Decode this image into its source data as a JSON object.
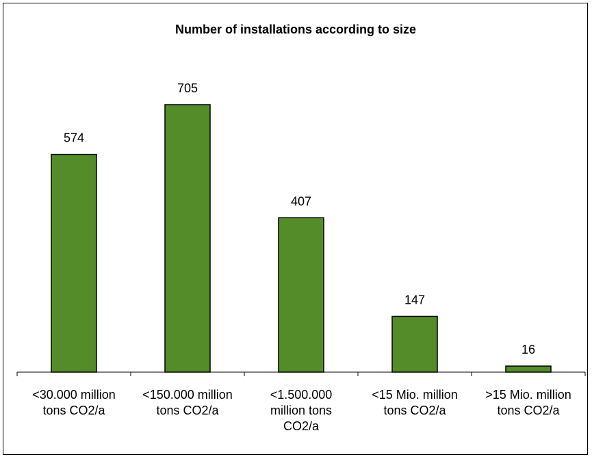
{
  "chart_data": {
    "type": "bar",
    "title": "Number of installations according to size",
    "categories": [
      "<30.000 million tons CO2/a",
      "<150.000 million tons CO2/a",
      "<1.500.000 million tons CO2/a",
      "<15 Mio. million tons CO2/a",
      ">15 Mio. million tons CO2/a"
    ],
    "category_lines": [
      [
        "<30.000 million",
        "tons CO2/a"
      ],
      [
        "<150.000 million",
        "tons CO2/a"
      ],
      [
        "<1.500.000",
        "million tons",
        "CO2/a"
      ],
      [
        "<15 Mio. million",
        "tons CO2/a"
      ],
      [
        ">15 Mio. million",
        "tons CO2/a"
      ]
    ],
    "values": [
      574,
      705,
      407,
      147,
      16
    ],
    "value_labels": [
      "574",
      "705",
      "407",
      "147",
      "16"
    ],
    "ylim": [
      0,
      800
    ],
    "bar_color": "#548C2A",
    "grid": false,
    "legend": "none",
    "xlabel": "",
    "ylabel": ""
  }
}
